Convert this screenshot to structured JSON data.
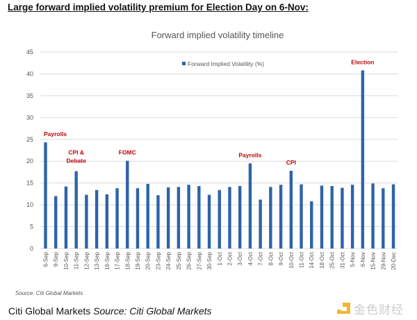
{
  "headline": "Large forward implied volatility premium for Election Day on 6-Nov",
  "headline_suffix": ":",
  "source_note": "Source: Citi Global Markets",
  "caption": {
    "prefix": "Citi Global Markets ",
    "italic": "Source: Citi Global Markets"
  },
  "watermark": "金色财经",
  "chart_data": {
    "type": "bar",
    "title": "Forward implied volatility timeline",
    "legend": "Forward Implied Volatility (%)",
    "legend_position": "top-center",
    "color": "#2e63a8",
    "annotation_color": "#c00000",
    "ylim": [
      0,
      45
    ],
    "yticks": [
      0,
      5,
      10,
      15,
      20,
      25,
      30,
      35,
      40,
      45
    ],
    "grid": true,
    "categories": [
      "6-Sep",
      "9-Sep",
      "10-Sep",
      "11-Sep",
      "12-Sep",
      "13-Sep",
      "16-Sep",
      "17-Sep",
      "18-Sep",
      "19-Sep",
      "20-Sep",
      "23-Sep",
      "24-Sep",
      "25-Sep",
      "26-Sep",
      "27-Sep",
      "30-Sep",
      "1-Oct",
      "2-Oct",
      "3-Oct",
      "4-Oct",
      "7-Oct",
      "8-Oct",
      "9-Oct",
      "10-Oct",
      "11-Oct",
      "14-Oct",
      "18-Oct",
      "25-Oct",
      "31-Oct",
      "5-Nov",
      "6-Nov",
      "15-Nov",
      "29-Nov",
      "20-Dec"
    ],
    "values": [
      24.3,
      12.0,
      14.2,
      17.7,
      12.3,
      13.4,
      12.4,
      13.8,
      20.1,
      13.8,
      14.8,
      12.2,
      14.0,
      14.1,
      14.6,
      14.3,
      12.3,
      13.4,
      14.1,
      14.3,
      19.5,
      11.2,
      14.1,
      14.6,
      17.8,
      14.7,
      10.8,
      14.4,
      14.3,
      13.9,
      14.6,
      40.8,
      14.9,
      13.8,
      14.7
    ],
    "annotations": [
      {
        "category": "6-Sep",
        "text": "Payrolls"
      },
      {
        "category": "11-Sep",
        "text": "CPI &",
        "text2": "Debate"
      },
      {
        "category": "18-Sep",
        "text": "FOMC"
      },
      {
        "category": "4-Oct",
        "text": "Payrolls"
      },
      {
        "category": "10-Oct",
        "text": "CPI"
      },
      {
        "category": "6-Nov",
        "text": "Election"
      }
    ]
  }
}
